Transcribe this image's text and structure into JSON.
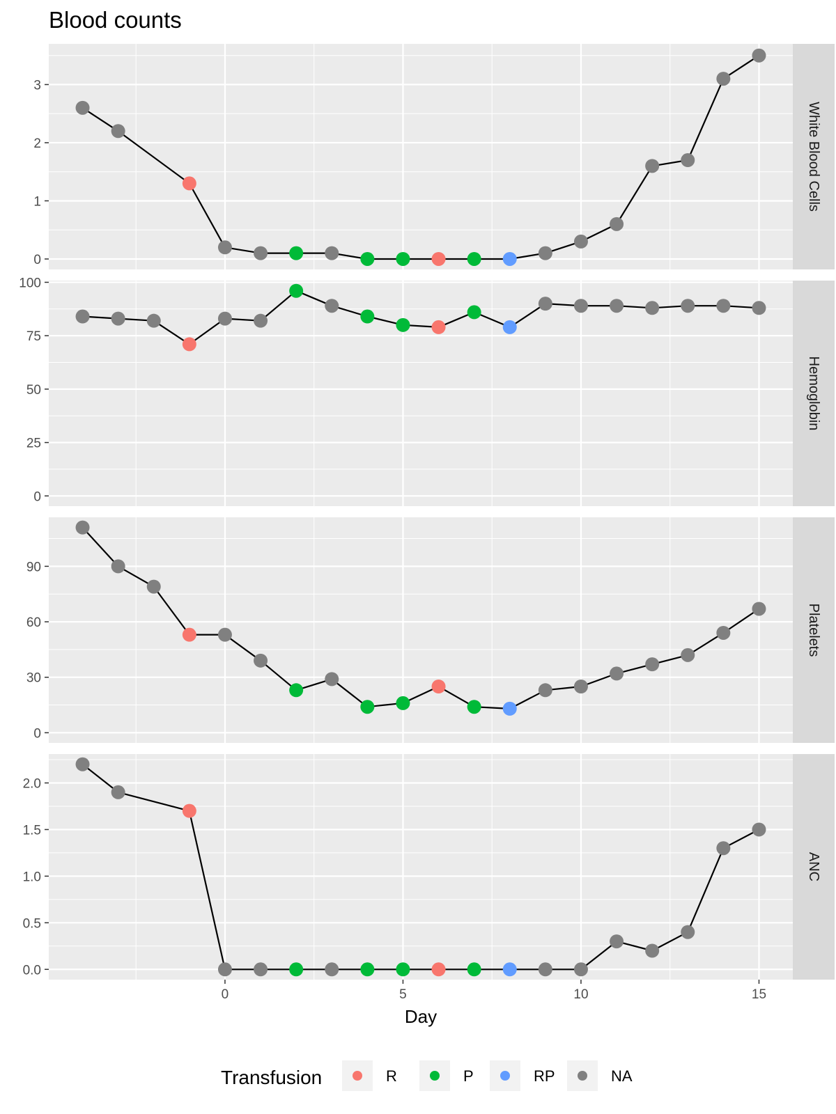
{
  "chart_data": {
    "type": "line",
    "title": "Blood counts",
    "xlabel": "Day",
    "xlim": [
      -4.95,
      15.95
    ],
    "x_ticks": [
      0,
      5,
      10,
      15
    ],
    "x": [
      -4,
      -3,
      -2,
      -1,
      0,
      1,
      2,
      3,
      4,
      5,
      6,
      7,
      8,
      9,
      10,
      11,
      12,
      13,
      14,
      15
    ],
    "transfusion": [
      null,
      null,
      null,
      "R",
      null,
      null,
      "P",
      null,
      "P",
      "P",
      "R",
      "P",
      "RP",
      null,
      null,
      null,
      null,
      null,
      null,
      null
    ],
    "legend": {
      "title": "Transfusion",
      "position": "bottom",
      "items": [
        {
          "label": "R",
          "color": "#F8766D"
        },
        {
          "label": "P",
          "color": "#00BA38"
        },
        {
          "label": "RP",
          "color": "#619CFF"
        },
        {
          "label": "NA",
          "color": "#808080"
        }
      ]
    },
    "colors": {
      "R": "#F8766D",
      "P": "#00BA38",
      "RP": "#619CFF",
      "NA": "#808080"
    },
    "grid": true,
    "panels": [
      {
        "name": "White Blood Cells",
        "ylim": [
          -0.18,
          3.7
        ],
        "y_ticks": [
          0,
          1,
          2,
          3
        ],
        "y_tick_labels": [
          "0",
          "1",
          "2",
          "3"
        ],
        "x": [
          -4,
          -3,
          -1,
          0,
          1,
          2,
          3,
          4,
          5,
          6,
          7,
          8,
          9,
          10,
          11,
          12,
          13,
          14,
          15
        ],
        "values": [
          2.6,
          2.2,
          1.3,
          0.2,
          0.1,
          0.1,
          0.1,
          0.0,
          0.0,
          0.0,
          0.0,
          0.0,
          0.1,
          0.3,
          0.6,
          1.6,
          1.7,
          3.1,
          3.5
        ]
      },
      {
        "name": "Hemoglobin",
        "ylim": [
          -4.8,
          100.8
        ],
        "y_ticks": [
          0,
          25,
          50,
          75,
          100
        ],
        "y_tick_labels": [
          "0",
          "25",
          "50",
          "75",
          "100"
        ],
        "x": [
          -4,
          -3,
          -2,
          -1,
          0,
          1,
          2,
          3,
          4,
          5,
          6,
          7,
          8,
          9,
          10,
          11,
          12,
          13,
          14,
          15
        ],
        "values": [
          84,
          83,
          82,
          71,
          83,
          82,
          96,
          89,
          84,
          80,
          79,
          86,
          79,
          90,
          89,
          89,
          88,
          89,
          89,
          88
        ]
      },
      {
        "name": "Platelets",
        "ylim": [
          -5.5,
          116.5
        ],
        "y_ticks": [
          0,
          30,
          60,
          90
        ],
        "y_tick_labels": [
          "0",
          "30",
          "60",
          "90"
        ],
        "x": [
          -4,
          -3,
          -2,
          -1,
          0,
          1,
          2,
          3,
          4,
          5,
          6,
          7,
          8,
          9,
          10,
          11,
          12,
          13,
          14,
          15
        ],
        "values": [
          111,
          90,
          79,
          53,
          53,
          39,
          23,
          29,
          14,
          16,
          25,
          14,
          13,
          23,
          25,
          32,
          37,
          42,
          54,
          67
        ]
      },
      {
        "name": "ANC",
        "ylim": [
          -0.11,
          2.31
        ],
        "y_ticks": [
          0,
          0.5,
          1.0,
          1.5,
          2.0
        ],
        "y_tick_labels": [
          "0.0",
          "0.5",
          "1.0",
          "1.5",
          "2.0"
        ],
        "x": [
          -4,
          -3,
          -1,
          0,
          1,
          2,
          3,
          4,
          5,
          6,
          7,
          8,
          9,
          10,
          11,
          12,
          13,
          14,
          15
        ],
        "values": [
          2.2,
          1.9,
          1.7,
          0.0,
          0.0,
          0.0,
          0.0,
          0.0,
          0.0,
          0.0,
          0.0,
          0.0,
          0.0,
          0.0,
          0.3,
          0.2,
          0.4,
          1.3,
          1.5
        ]
      }
    ]
  }
}
